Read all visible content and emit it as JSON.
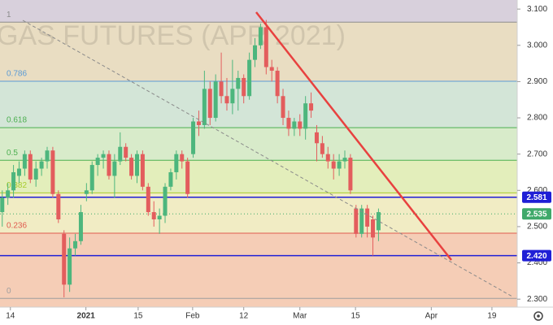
{
  "chart_data": {
    "type": "candlestick",
    "watermark": "GAS FUTURES (APR 2021)",
    "xlim": [
      -0.4,
      91.7
    ],
    "xticks": [
      {
        "value": 1.45,
        "label": "14"
      },
      {
        "value": 14.9,
        "label": "2021"
      },
      {
        "value": 24.2,
        "label": "15"
      },
      {
        "value": 33.9,
        "label": "Feb"
      },
      {
        "value": 43,
        "label": "12"
      },
      {
        "value": 53,
        "label": "Mar"
      },
      {
        "value": 62.9,
        "label": "15"
      },
      {
        "value": 76.4,
        "label": "Apr"
      },
      {
        "value": 87.2,
        "label": "19"
      }
    ],
    "ylim": [
      2.278,
      3.125
    ],
    "yticks": [
      {
        "value": 3.1,
        "label": "3.100"
      },
      {
        "value": 3.0,
        "label": "3.000"
      },
      {
        "value": 2.9,
        "label": "2.900"
      },
      {
        "value": 2.8,
        "label": "2.800"
      },
      {
        "value": 2.7,
        "label": "2.700"
      },
      {
        "value": 2.6,
        "label": "2.600"
      },
      {
        "value": 2.5,
        "label": "2.500"
      },
      {
        "value": 2.4,
        "label": "2.400"
      },
      {
        "value": 2.3,
        "label": "2.300"
      }
    ],
    "up_color": "#4db67d",
    "down_color": "#e35d5d",
    "open": [
      2.54,
      2.58,
      2.6,
      2.64,
      2.66,
      2.7,
      2.63,
      2.66,
      2.68,
      2.71,
      2.59,
      2.48,
      2.34,
      2.44,
      2.46,
      2.59,
      2.6,
      2.67,
      2.69,
      2.7,
      2.64,
      2.68,
      2.72,
      2.69,
      2.64,
      2.7,
      2.61,
      2.54,
      2.52,
      2.53,
      2.61,
      2.65,
      2.7,
      2.68,
      2.7,
      2.79,
      2.78,
      2.88,
      2.8,
      2.9,
      2.86,
      2.84,
      2.88,
      2.91,
      2.86,
      2.96,
      3.0,
      3.05,
      2.94,
      2.93,
      2.86,
      2.8,
      2.77,
      2.79,
      2.77,
      2.84,
      2.76,
      2.73,
      2.7,
      2.68,
      2.66,
      2.68,
      2.69,
      2.55,
      2.48,
      2.55,
      2.52,
      2.49
    ],
    "high": [
      2.6,
      2.62,
      2.67,
      2.68,
      2.71,
      2.71,
      2.68,
      2.69,
      2.72,
      2.72,
      2.6,
      2.49,
      2.47,
      2.48,
      2.56,
      2.62,
      2.68,
      2.7,
      2.71,
      2.71,
      2.7,
      2.76,
      2.73,
      2.7,
      2.71,
      2.71,
      2.62,
      2.57,
      2.55,
      2.62,
      2.66,
      2.71,
      2.71,
      2.69,
      2.8,
      2.82,
      2.93,
      2.9,
      2.92,
      2.98,
      2.91,
      2.96,
      2.93,
      2.92,
      2.98,
      3.02,
      3.06,
      3.07,
      2.96,
      2.94,
      2.88,
      2.82,
      2.8,
      2.81,
      2.86,
      2.87,
      2.78,
      2.75,
      2.72,
      2.7,
      2.7,
      2.71,
      2.7,
      2.56,
      2.56,
      2.56,
      2.53,
      2.55
    ],
    "low": [
      2.5,
      2.56,
      2.58,
      2.62,
      2.64,
      2.62,
      2.61,
      2.64,
      2.66,
      2.58,
      2.51,
      2.305,
      2.32,
      2.42,
      2.45,
      2.57,
      2.59,
      2.64,
      2.66,
      2.63,
      2.58,
      2.67,
      2.68,
      2.63,
      2.62,
      2.6,
      2.53,
      2.5,
      2.48,
      2.51,
      2.6,
      2.63,
      2.66,
      2.58,
      2.69,
      2.75,
      2.77,
      2.78,
      2.79,
      2.84,
      2.82,
      2.81,
      2.82,
      2.84,
      2.85,
      2.94,
      2.99,
      2.92,
      2.9,
      2.84,
      2.78,
      2.75,
      2.75,
      2.75,
      2.74,
      2.8,
      2.68,
      2.69,
      2.66,
      2.63,
      2.64,
      2.66,
      2.59,
      2.47,
      2.47,
      2.47,
      2.42,
      2.46
    ],
    "close": [
      2.58,
      2.6,
      2.65,
      2.66,
      2.7,
      2.63,
      2.66,
      2.68,
      2.71,
      2.59,
      2.52,
      2.34,
      2.44,
      2.46,
      2.54,
      2.6,
      2.67,
      2.69,
      2.7,
      2.64,
      2.68,
      2.72,
      2.69,
      2.64,
      2.7,
      2.61,
      2.54,
      2.52,
      2.53,
      2.61,
      2.65,
      2.7,
      2.68,
      2.59,
      2.79,
      2.78,
      2.88,
      2.8,
      2.9,
      2.86,
      2.84,
      2.88,
      2.91,
      2.86,
      2.96,
      3.0,
      3.05,
      2.94,
      2.93,
      2.86,
      2.8,
      2.77,
      2.79,
      2.77,
      2.84,
      2.82,
      2.73,
      2.7,
      2.68,
      2.66,
      2.68,
      2.69,
      2.6,
      2.48,
      2.55,
      2.5,
      2.47,
      2.54
    ],
    "fib_levels": [
      {
        "label": "0",
        "value": 2.302,
        "color": "#9e9e9e",
        "fill": "#f5cdb6"
      },
      {
        "label": "0.236",
        "value": 2.482,
        "color": "#e05a4f",
        "fill": "#f1ecc4"
      },
      {
        "label": "0.382",
        "value": 2.593,
        "color": "#a8cc2e",
        "fill": "#e3eebb"
      },
      {
        "label": "0.5",
        "value": 2.683,
        "color": "#4caf50",
        "fill": "#d8ebca"
      },
      {
        "label": "0.618",
        "value": 2.773,
        "color": "#4caf50",
        "fill": "#d3e5d7"
      },
      {
        "label": "0.786",
        "value": 2.901,
        "color": "#5b9bd5",
        "fill": "#e9ddc2"
      },
      {
        "label": "1",
        "value": 3.064,
        "color": "#8c8c8c",
        "fill": "#d8d0dc"
      }
    ],
    "price_lines": [
      {
        "value": 2.581,
        "label": "2.581",
        "color": "#1f1fd6",
        "style": "solid"
      },
      {
        "value": 2.535,
        "label": "2.535",
        "color": "#3fa96a",
        "style": "dotted"
      },
      {
        "value": 2.42,
        "label": "2.420",
        "color": "#1f1fd6",
        "style": "solid"
      }
    ]
  }
}
